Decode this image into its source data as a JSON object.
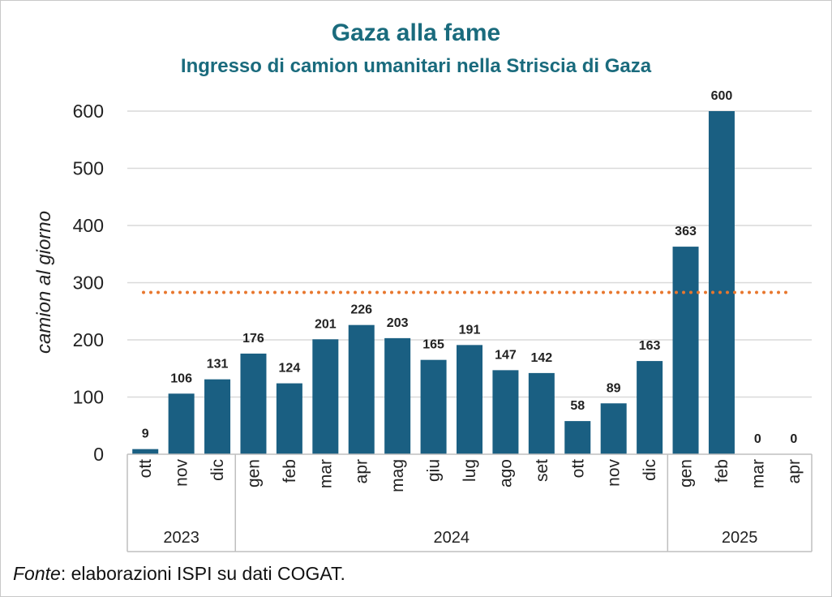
{
  "title": "Gaza alla fame",
  "subtitle": "Ingresso di camion umanitari nella Striscia di Gaza",
  "source": {
    "prefix": "Fonte",
    "text": ": elaborazioni ISPI su dati COGAT."
  },
  "colors": {
    "bar": "#1a5f82",
    "title": "#1a6b7d",
    "reference_line": "#e8772e",
    "grid": "#d9d9d9"
  },
  "chart_data": {
    "type": "bar",
    "title": "Gaza alla fame",
    "subtitle": "Ingresso di camion umanitari nella Striscia di Gaza",
    "ylabel": "camion al giorno",
    "xlabel": "",
    "ylim": [
      0,
      600
    ],
    "yticks": [
      0,
      100,
      200,
      300,
      400,
      500,
      600
    ],
    "grid": true,
    "categories": [
      "ott",
      "nov",
      "dic",
      "gen",
      "feb",
      "mar",
      "apr",
      "mag",
      "giu",
      "lug",
      "ago",
      "set",
      "ott",
      "nov",
      "dic",
      "gen",
      "feb",
      "mar",
      "apr"
    ],
    "values": [
      9,
      106,
      131,
      176,
      124,
      201,
      226,
      203,
      165,
      191,
      147,
      142,
      58,
      89,
      163,
      363,
      600,
      0,
      0
    ],
    "year_groups": [
      {
        "label": "2023",
        "count": 3
      },
      {
        "label": "2024",
        "count": 12
      },
      {
        "label": "2025",
        "count": 4
      }
    ],
    "reference_line": {
      "value": 290,
      "style": "dotted"
    }
  }
}
